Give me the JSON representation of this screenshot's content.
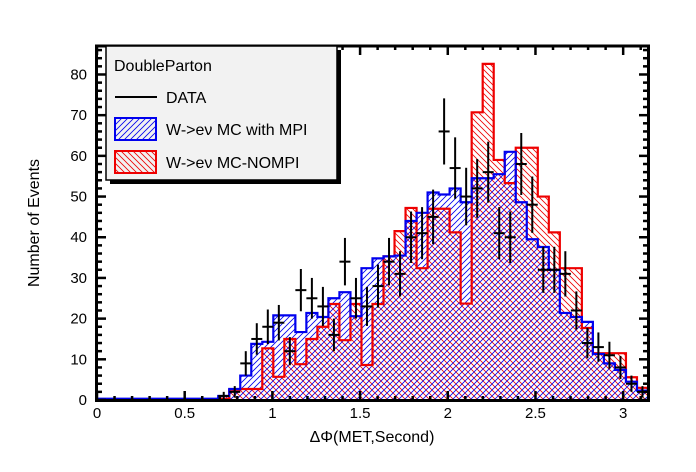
{
  "chart_data": {
    "type": "bar",
    "subtype": "step-histogram-with-data-points",
    "title": "",
    "xlabel": "ΔΦ(MET,Second)",
    "ylabel": "Number of Events",
    "xlim": [
      0,
      3.1416
    ],
    "ylim": [
      0,
      87
    ],
    "xticks": [
      0,
      0.5,
      1,
      1.5,
      2,
      2.5,
      3
    ],
    "xtick_labels": [
      "0",
      "0.5",
      "1",
      "1.5",
      "2",
      "2.5",
      "3"
    ],
    "yticks": [
      0,
      10,
      20,
      30,
      40,
      50,
      60,
      70,
      80
    ],
    "ytick_labels": [
      "0",
      "10",
      "20",
      "30",
      "40",
      "50",
      "60",
      "70",
      "80"
    ],
    "grid": false,
    "n_bins": 50,
    "bin_width": 0.06283,
    "legend": {
      "placement": "top-left",
      "title": "DoubleParton",
      "entries": [
        {
          "label": "DATA",
          "style": "line",
          "color": "#000000"
        },
        {
          "label": "W->eν MC with MPI",
          "style": "hatched-box",
          "color": "#0000ee"
        },
        {
          "label": "W->eν MC-NOMPI",
          "style": "hatched-box",
          "color": "#ee0000"
        }
      ]
    },
    "series": [
      {
        "name": "W->eν MC with MPI",
        "color": "#0000ee",
        "hatch": "forward",
        "values": [
          0.3,
          0.3,
          0.3,
          0.3,
          0.3,
          0.3,
          0.3,
          0.3,
          0.3,
          0.3,
          0.3,
          1,
          2.7,
          6,
          13.8,
          14.3,
          20.8,
          20.8,
          16.7,
          21.4,
          20.4,
          25,
          26.5,
          20.6,
          32.4,
          34.8,
          35.3,
          35.5,
          44,
          46,
          51,
          50.5,
          52,
          48.6,
          54.5,
          54.5,
          55.5,
          61,
          48.6,
          39.5,
          37.6,
          32,
          21.4,
          20.4,
          19.2,
          11.3,
          9,
          7.4,
          4.5,
          2.3
        ]
      },
      {
        "name": "W->eν MC-NOMPI",
        "color": "#ee0000",
        "hatch": "backward",
        "values": [
          0,
          0,
          0,
          0,
          0,
          0,
          0,
          0,
          0,
          0,
          0,
          0.3,
          2.5,
          2.7,
          2.7,
          12.7,
          5.7,
          15,
          8.8,
          15,
          18,
          23.6,
          14.7,
          23.6,
          8.6,
          23.6,
          35.3,
          41.5,
          47.2,
          32.4,
          47,
          47,
          41.2,
          23.7,
          70.7,
          82.6,
          59,
          53.3,
          62,
          62,
          50,
          41.2,
          32.4,
          32.4,
          17.7,
          11.5,
          11.5,
          11.5,
          5.6,
          3
        ]
      },
      {
        "name": "DATA",
        "color": "#000000",
        "style": "points-with-errors",
        "values": [
          0,
          0,
          0,
          0,
          0,
          0,
          0,
          0,
          0,
          0,
          0,
          1,
          2,
          9,
          15,
          18,
          19,
          12,
          27,
          25,
          23,
          16,
          34,
          25,
          23,
          28,
          34,
          31,
          40,
          41,
          45,
          66,
          57,
          50,
          52,
          56,
          41,
          40,
          58,
          48,
          32,
          32,
          31,
          22,
          14,
          13,
          11,
          8,
          4,
          2
        ]
      }
    ]
  }
}
